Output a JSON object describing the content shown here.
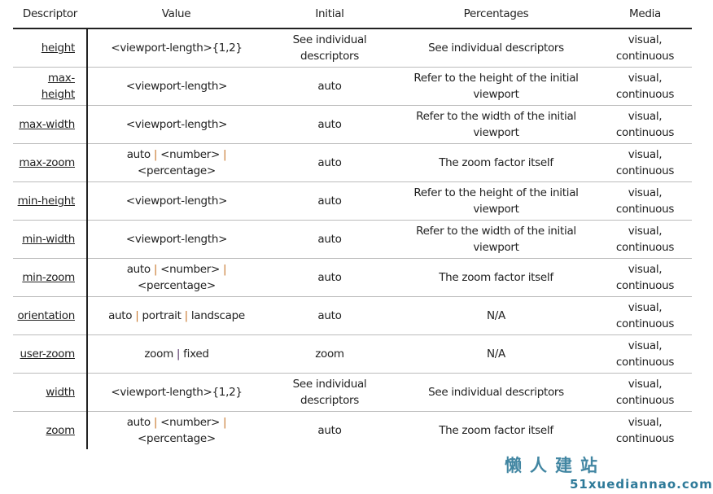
{
  "headers": [
    "Descriptor",
    "Value",
    "Initial",
    "Percentages",
    "Media"
  ],
  "rows": [
    {
      "descriptor": "height",
      "value": "<viewport-length>{1,2}",
      "initial": "See individual descriptors",
      "percentages": "See individual descriptors",
      "media": "visual, continuous"
    },
    {
      "descriptor": "max-height",
      "value": "<viewport-length>",
      "initial": "auto",
      "percentages": "Refer to the height of the initial viewport",
      "media": "visual, continuous"
    },
    {
      "descriptor": "max-width",
      "value": "<viewport-length>",
      "initial": "auto",
      "percentages": "Refer to the width of the initial viewport",
      "media": "visual, continuous"
    },
    {
      "descriptor": "max-zoom",
      "value": "auto | <number> | <percentage>",
      "initial": "auto",
      "percentages": "The zoom factor itself",
      "media": "visual, continuous"
    },
    {
      "descriptor": "min-height",
      "value": "<viewport-length>",
      "initial": "auto",
      "percentages": "Refer to the height of the initial viewport",
      "media": "visual, continuous"
    },
    {
      "descriptor": "min-width",
      "value": "<viewport-length>",
      "initial": "auto",
      "percentages": "Refer to the width of the initial viewport",
      "media": "visual, continuous"
    },
    {
      "descriptor": "min-zoom",
      "value": "auto | <number> | <percentage>",
      "initial": "auto",
      "percentages": "The zoom factor itself",
      "media": "visual, continuous"
    },
    {
      "descriptor": "orientation",
      "value": "auto | portrait | landscape",
      "initial": "auto",
      "percentages": "N/A",
      "media": "visual, continuous"
    },
    {
      "descriptor": "user-zoom",
      "value": "zoom | fixed",
      "initial": "zoom",
      "percentages": "N/A",
      "media": "visual, continuous",
      "pipe_color": "#553366"
    },
    {
      "descriptor": "width",
      "value": "<viewport-length>{1,2}",
      "initial": "See individual descriptors",
      "percentages": "See individual descriptors",
      "media": "visual, continuous"
    },
    {
      "descriptor": "zoom",
      "value": "auto | <number> | <percentage>",
      "initial": "auto",
      "percentages": "The zoom factor itself",
      "media": "visual, continuous"
    }
  ],
  "watermark": {
    "line1": "懒人建站",
    "line2": "51xuediannao.com"
  },
  "colors": {
    "pipe": "#c8782e"
  }
}
